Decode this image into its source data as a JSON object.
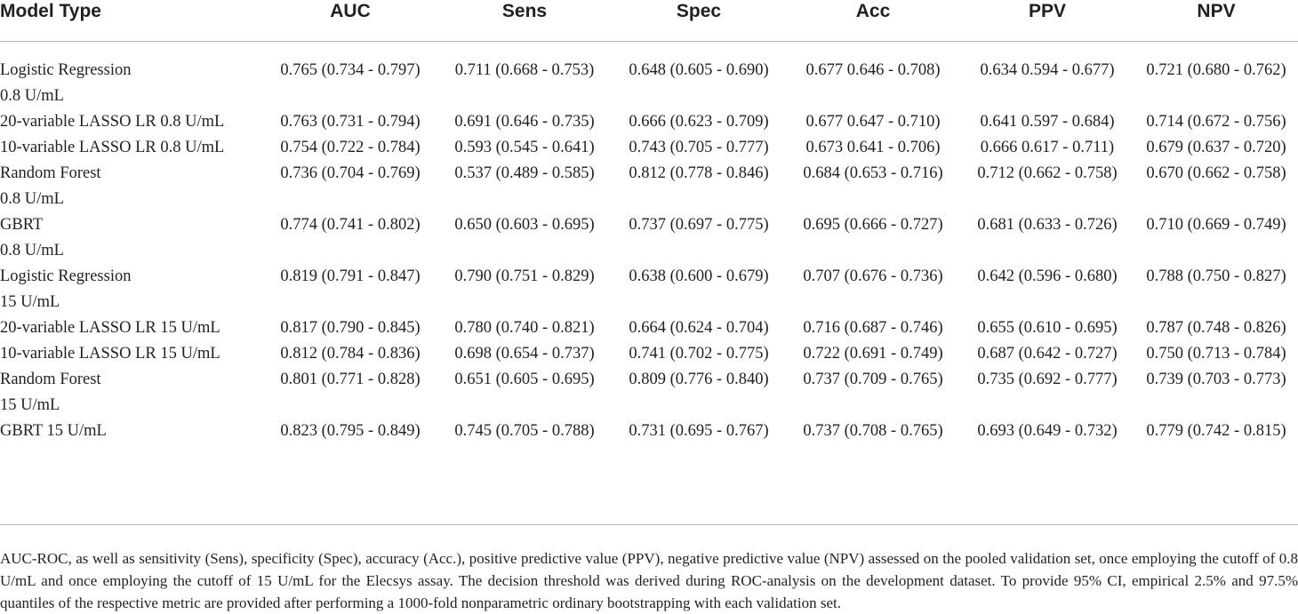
{
  "table": {
    "headers": [
      "Model Type",
      "AUC",
      "Sens",
      "Spec",
      "Acc",
      "PPV",
      "NPV"
    ],
    "rows": [
      {
        "name": [
          "Logistic Regression",
          "0.8 U/mL"
        ],
        "values": [
          "0.765 (0.734 - 0.797)",
          "0.711 (0.668 - 0.753)",
          "0.648 (0.605 - 0.690)",
          "0.677 0.646 - 0.708)",
          "0.634 0.594 - 0.677)",
          "0.721 (0.680 - 0.762)"
        ]
      },
      {
        "name": [
          "20-variable LASSO LR 0.8 U/mL"
        ],
        "values": [
          "0.763 (0.731 - 0.794)",
          "0.691 (0.646 - 0.735)",
          "0.666 (0.623 - 0.709)",
          "0.677 0.647 - 0.710)",
          "0.641 0.597 - 0.684)",
          "0.714 (0.672 - 0.756)"
        ]
      },
      {
        "name": [
          "10-variable LASSO LR 0.8 U/mL"
        ],
        "values": [
          "0.754 (0.722 - 0.784)",
          "0.593 (0.545 - 0.641)",
          "0.743 (0.705 - 0.777)",
          "0.673 0.641 - 0.706)",
          "0.666 0.617 - 0.711)",
          "0.679 (0.637 - 0.720)"
        ]
      },
      {
        "name": [
          "Random Forest",
          "0.8 U/mL"
        ],
        "values": [
          "0.736 (0.704 - 0.769)",
          "0.537 (0.489 - 0.585)",
          "0.812 (0.778 - 0.846)",
          "0.684 (0.653 - 0.716)",
          "0.712 (0.662 - 0.758)",
          "0.670 (0.662 - 0.758)"
        ]
      },
      {
        "name": [
          "GBRT",
          "0.8 U/mL"
        ],
        "values": [
          "0.774 (0.741 - 0.802)",
          "0.650 (0.603 - 0.695)",
          "0.737 (0.697 - 0.775)",
          "0.695 (0.666 - 0.727)",
          "0.681 (0.633 - 0.726)",
          "0.710 (0.669 - 0.749)"
        ]
      },
      {
        "name": [
          "Logistic Regression",
          "15 U/mL"
        ],
        "values": [
          "0.819 (0.791 - 0.847)",
          "0.790 (0.751 - 0.829)",
          "0.638 (0.600 - 0.679)",
          "0.707 (0.676 - 0.736)",
          "0.642 (0.596 - 0.680)",
          "0.788 (0.750 - 0.827)"
        ]
      },
      {
        "name": [
          "20-variable LASSO LR 15 U/mL"
        ],
        "values": [
          "0.817 (0.790 - 0.845)",
          "0.780 (0.740 - 0.821)",
          "0.664 (0.624 - 0.704)",
          "0.716 (0.687 - 0.746)",
          "0.655 (0.610 - 0.695)",
          "0.787 (0.748 - 0.826)"
        ]
      },
      {
        "name": [
          "10-variable LASSO LR 15 U/mL"
        ],
        "values": [
          "0.812 (0.784 - 0.836)",
          "0.698 (0.654 - 0.737)",
          "0.741 (0.702 - 0.775)",
          "0.722 (0.691 - 0.749)",
          "0.687 (0.642 - 0.727)",
          "0.750 (0.713 - 0.784)"
        ]
      },
      {
        "name": [
          "Random Forest",
          "15 U/mL"
        ],
        "values": [
          "0.801 (0.771 - 0.828)",
          "0.651 (0.605 - 0.695)",
          "0.809 (0.776 - 0.840)",
          "0.737 (0.709 - 0.765)",
          "0.735 (0.692 - 0.777)",
          "0.739 (0.703 - 0.773)"
        ]
      },
      {
        "name": [
          "GBRT 15 U/mL"
        ],
        "values": [
          "0.823 (0.795 - 0.849)",
          "0.745 (0.705 - 0.788)",
          "0.731 (0.695 - 0.767)",
          "0.737 (0.708 - 0.765)",
          "0.693 (0.649 - 0.732)",
          "0.779 (0.742 - 0.815)"
        ]
      }
    ]
  },
  "footnote": "AUC-ROC, as well as sensitivity (Sens), specificity (Spec), accuracy (Acc.), positive predictive value (PPV), negative predictive value (NPV) assessed on the pooled validation set, once employing the cutoff of 0.8 U/mL and once employing the cutoff of 15 U/mL for the Elecsys assay. The decision threshold was derived during ROC-analysis on the development dataset. To provide 95% CI, empirical 2.5% and 97.5% quantiles of the respective metric are provided after performing a 1000-fold nonparametric ordinary bootstrapping with each validation set.",
  "colors": {
    "text": "#231f20",
    "rule": "#b8b8b8",
    "background": "#ffffff"
  }
}
